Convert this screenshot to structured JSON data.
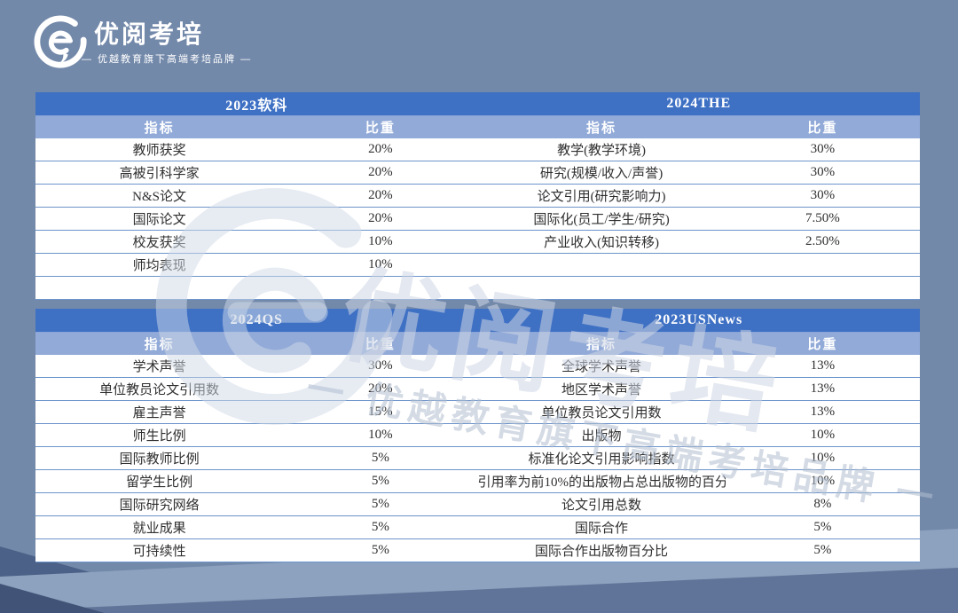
{
  "brand": {
    "name": "优阅考培",
    "tagline": "— 优越教育旗下高端考培品牌 —"
  },
  "watermark": {
    "logo_text": "优阅考培",
    "tagline": "一 优越教育旗下高端考培品牌 一"
  },
  "colors": {
    "header_blue": "#3e70c4",
    "subheader_blue": "#92aad8",
    "row_divider_blue": "#6d94cb",
    "background_slate": "#7389aa",
    "white": "#ffffff"
  },
  "tables": [
    {
      "left": {
        "title": "2023软科",
        "indicator_label": "指标",
        "weight_label": "比重",
        "rows": [
          [
            "教师获奖",
            "20%"
          ],
          [
            "高被引科学家",
            "20%"
          ],
          [
            "N&S论文",
            "20%"
          ],
          [
            "国际论文",
            "20%"
          ],
          [
            "校友获奖",
            "10%"
          ],
          [
            "师均表现",
            "10%"
          ],
          [
            "",
            ""
          ]
        ]
      },
      "right": {
        "title": "2024THE",
        "indicator_label": "指标",
        "weight_label": "比重",
        "rows": [
          [
            "教学(教学环境)",
            "30%"
          ],
          [
            "研究(规模/收入/声誉)",
            "30%"
          ],
          [
            "论文引用(研究影响力)",
            "30%"
          ],
          [
            "国际化(员工/学生/研究)",
            "7.50%"
          ],
          [
            "产业收入(知识转移)",
            "2.50%"
          ],
          [
            "",
            ""
          ],
          [
            "",
            ""
          ]
        ]
      }
    },
    {
      "left": {
        "title": "2024QS",
        "indicator_label": "指标",
        "weight_label": "比重",
        "rows": [
          [
            "学术声誉",
            "30%"
          ],
          [
            "单位教员论文引用数",
            "20%"
          ],
          [
            "雇主声誉",
            "15%"
          ],
          [
            "师生比例",
            "10%"
          ],
          [
            "国际教师比例",
            "5%"
          ],
          [
            "留学生比例",
            "5%"
          ],
          [
            "国际研究网络",
            "5%"
          ],
          [
            "就业成果",
            "5%"
          ],
          [
            "可持续性",
            "5%"
          ]
        ]
      },
      "right": {
        "title": "2023USNews",
        "indicator_label": "指标",
        "weight_label": "比重",
        "rows": [
          [
            "全球学术声誉",
            "13%"
          ],
          [
            "地区学术声誉",
            "13%"
          ],
          [
            "单位教员论文引用数",
            "13%"
          ],
          [
            "出版物",
            "10%"
          ],
          [
            "标准化论文引用影响指数",
            "10%"
          ],
          [
            "引用率为前10%的出版物占总出版物的百分比",
            "10%"
          ],
          [
            "论文引用总数",
            "8%"
          ],
          [
            "国际合作",
            "5%"
          ],
          [
            "国际合作出版物百分比",
            "5%"
          ]
        ]
      }
    }
  ]
}
